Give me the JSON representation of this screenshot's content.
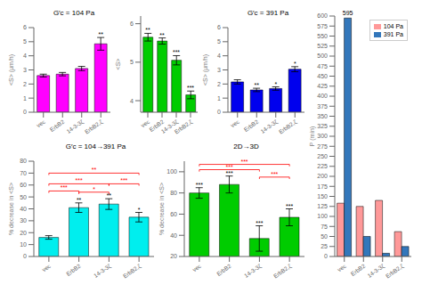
{
  "chart_data": [
    {
      "type": "bar",
      "title": "G′c = 104 Pa",
      "categories": [
        "vec",
        "ErbB2",
        "14-3-3ζ",
        "ErbB2,ζ"
      ],
      "values": [
        2.6,
        2.7,
        3.1,
        4.85
      ],
      "errors": [
        0.1,
        0.12,
        0.15,
        0.45
      ],
      "color": "#FF00FF",
      "y_label": "<S> (μm/h)",
      "ylim": [
        0,
        6
      ],
      "yticks": [
        0,
        1,
        2,
        3,
        4,
        5,
        6
      ],
      "grid": false,
      "annotations": [
        {
          "category": "ErbB2,ζ",
          "text": "**"
        }
      ]
    },
    {
      "type": "bar",
      "categories": [
        "vec",
        "ErbB2",
        "14-3-3ζ",
        "ErbB2,ζ"
      ],
      "values": [
        5.65,
        5.55,
        5.05,
        4.15
      ],
      "errors": [
        0.1,
        0.08,
        0.12,
        0.1
      ],
      "color": "#00CC00",
      "y_label": "<S>",
      "ylim": [
        3.7,
        6.2
      ],
      "yticks": [
        4,
        5,
        6
      ],
      "grid": false,
      "annotations": [
        {
          "category": "vec",
          "text": "**"
        },
        {
          "category": "ErbB2",
          "text": "**"
        },
        {
          "category": "14-3-3ζ",
          "text": "***"
        },
        {
          "category": "ErbB2,ζ",
          "text": "***"
        }
      ]
    },
    {
      "type": "bar",
      "title": "G′c = 391 Pa",
      "categories": [
        "vec",
        "ErbB2",
        "14-3-3ζ",
        "ErbB2,ζ"
      ],
      "values": [
        2.15,
        1.58,
        1.68,
        3.05
      ],
      "errors": [
        0.15,
        0.12,
        0.12,
        0.18
      ],
      "color": "#0000EE",
      "y_label": "<S> (μm/h)",
      "ylim": [
        0,
        6
      ],
      "yticks": [
        0,
        1,
        2,
        3,
        4,
        5,
        6
      ],
      "grid": false,
      "annotations": [
        {
          "category": "ErbB2",
          "text": "**"
        },
        {
          "category": "14-3-3ζ",
          "text": "*"
        },
        {
          "category": "ErbB2,ζ",
          "text": "*"
        }
      ]
    },
    {
      "type": "bar",
      "title": "G′c = 104→391 Pa",
      "categories": [
        "vec",
        "ErbB2",
        "14-3-3ζ",
        "ErbB2,ζ"
      ],
      "values": [
        16,
        41,
        44,
        33
      ],
      "errors": [
        1.5,
        4,
        4.5,
        4
      ],
      "color": "#00EEEE",
      "y_label": "% decrease in <S>",
      "ylim": [
        0,
        80
      ],
      "yticks": [
        0,
        10,
        20,
        30,
        40,
        50,
        60,
        70,
        80
      ],
      "grid": false,
      "annotations": [
        {
          "category": "ErbB2",
          "text": "**"
        },
        {
          "category": "14-3-3ζ",
          "text": "**"
        },
        {
          "category": "ErbB2,ζ",
          "text": "*"
        },
        {
          "from": "vec",
          "to": "ErbB2",
          "y": 55,
          "text": "***",
          "color": "#FF0000"
        },
        {
          "from": "vec",
          "to": "14-3-3ζ",
          "y": 61,
          "text": "***",
          "color": "#FF0000"
        },
        {
          "from": "ErbB2",
          "to": "14-3-3ζ",
          "y": 54,
          "text": "*",
          "color": "#FF0000"
        },
        {
          "from": "vec",
          "to": "ErbB2,ζ",
          "y": 70,
          "text": "**",
          "color": "#FF0000"
        },
        {
          "from": "14-3-3ζ",
          "to": "ErbB2,ζ",
          "y": 61,
          "text": "***",
          "color": "#FF0000"
        }
      ]
    },
    {
      "type": "bar",
      "categories": [
        "vec",
        "ErbB2",
        "14-3-3ζ",
        "ErbB2,ζ"
      ],
      "series": [
        {
          "name": "104 Pa",
          "color": "#FF9999",
          "values": [
            133,
            125,
            140,
            62
          ]
        },
        {
          "name": "391 Pa",
          "color": "#3377BB",
          "values": [
            595,
            50,
            8,
            25
          ]
        }
      ],
      "y_label": "P (min)",
      "ylim": [
        0,
        600
      ],
      "yticks": [
        0,
        25,
        50,
        75,
        100,
        125,
        150,
        175,
        200,
        225,
        250,
        275,
        300,
        325,
        350,
        375,
        400,
        425,
        450,
        475,
        500,
        525,
        550,
        575,
        600
      ],
      "grid": false,
      "legend": "upper right",
      "annotations": [
        {
          "category": "vec",
          "series": "391 Pa",
          "text": "595"
        }
      ]
    },
    {
      "type": "bar",
      "title": "2D→3D",
      "categories": [
        "vec",
        "ErbB2",
        "14-3-3ζ",
        "ErbB2,ζ"
      ],
      "values": [
        80,
        88,
        37,
        57
      ],
      "errors": [
        5,
        8,
        12,
        8
      ],
      "color": "#00CC00",
      "y_label": "% decrease in <S>",
      "ylim": [
        20,
        110
      ],
      "yticks": [
        20,
        40,
        60,
        80,
        100
      ],
      "grid": false,
      "annotations": [
        {
          "category": "vec",
          "text": "***"
        },
        {
          "category": "ErbB2",
          "text": "***"
        },
        {
          "category": "14-3-3ζ",
          "text": "***"
        },
        {
          "category": "ErbB2,ζ",
          "text": "***"
        },
        {
          "from": "vec",
          "to": "14-3-3ζ",
          "y": 102,
          "text": "***",
          "color": "#FF0000"
        },
        {
          "from": "vec",
          "to": "ErbB2,ζ",
          "y": 107,
          "text": "***",
          "color": "#FF0000"
        },
        {
          "from": "14-3-3ζ",
          "to": "ErbB2,ζ",
          "y": 95,
          "text": "***",
          "color": "#FF0000"
        }
      ]
    }
  ]
}
